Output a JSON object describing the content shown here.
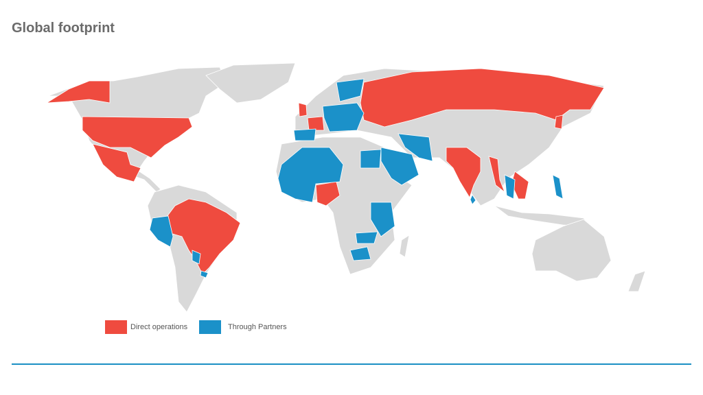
{
  "title": "Global footprint",
  "legend": {
    "direct": {
      "label": "Direct operations",
      "color": "#ef4b3f"
    },
    "partner": {
      "label": "Through Partners",
      "color": "#1b91c9"
    }
  },
  "colors": {
    "land": "#d9d9d9",
    "rule": "#1a8fc4"
  }
}
